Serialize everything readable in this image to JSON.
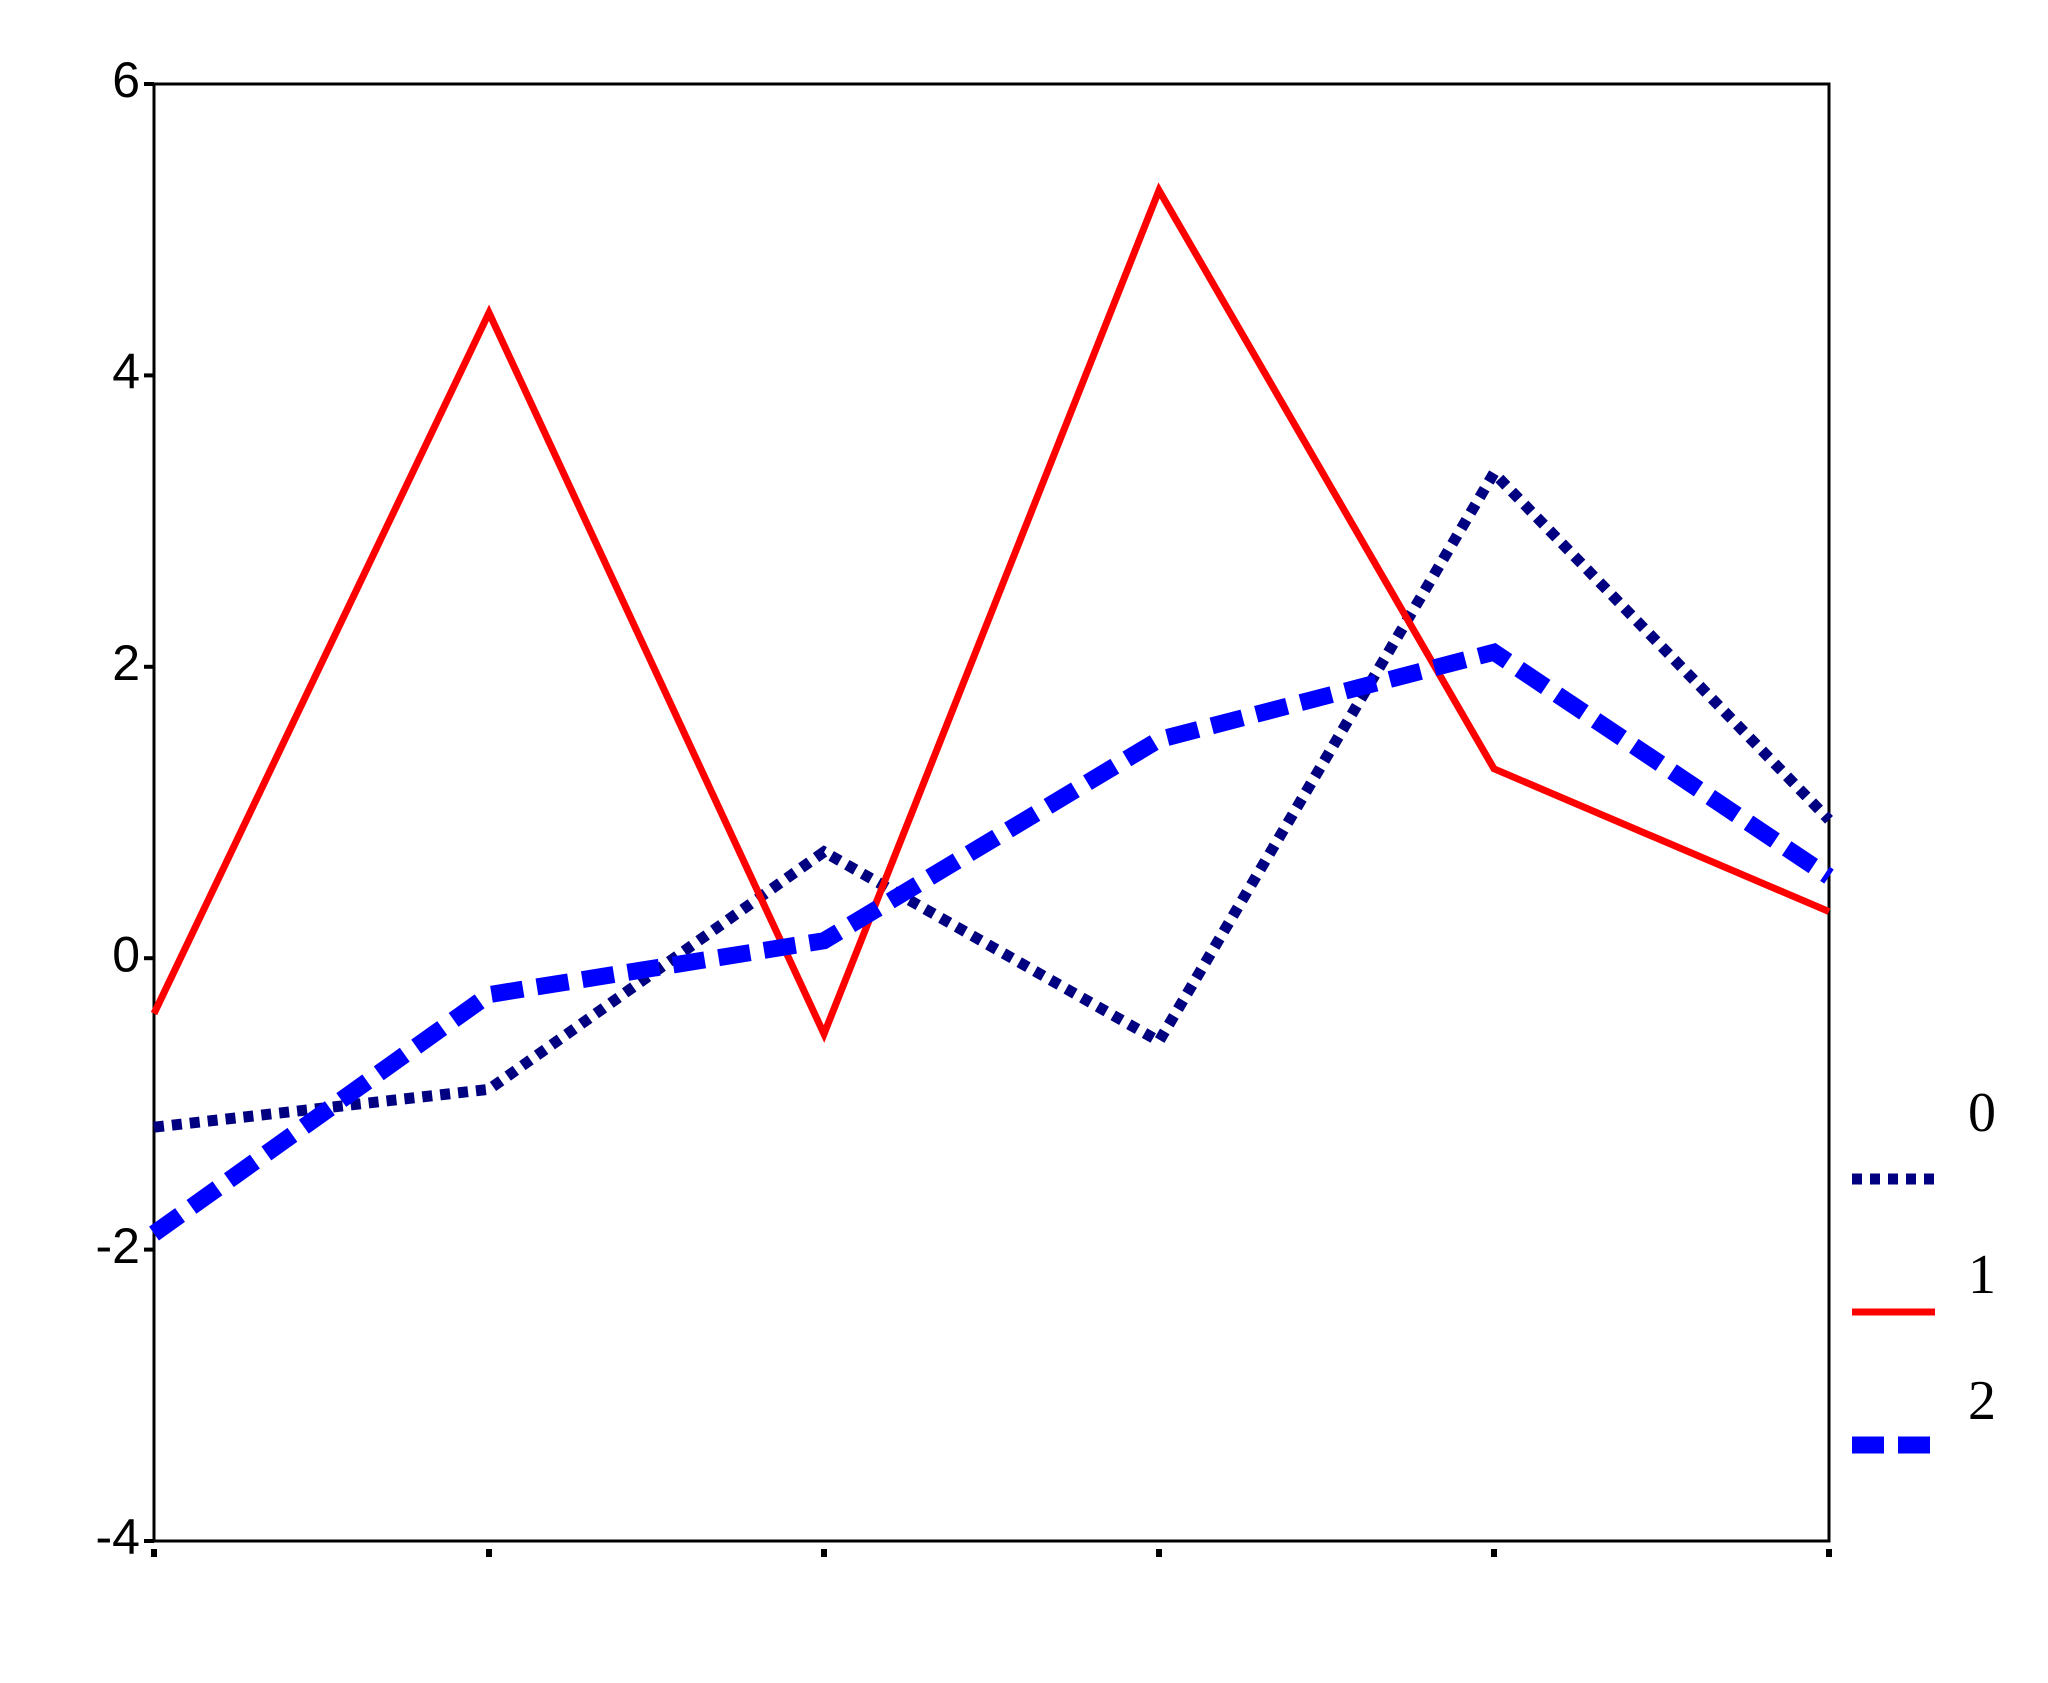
{
  "chart_data": {
    "type": "line",
    "categories": [
      null,
      null,
      null,
      null,
      null,
      null
    ],
    "series": [
      {
        "name": "0",
        "color": "#000080",
        "style": "dotted",
        "values": [
          -1.16,
          -0.9,
          0.73,
          -0.57,
          3.33,
          0.95
        ]
      },
      {
        "name": "1",
        "color": "#ff0000",
        "style": "solid",
        "values": [
          -0.38,
          4.43,
          -0.52,
          5.27,
          1.3,
          0.32
        ]
      },
      {
        "name": "2",
        "color": "#0000ff",
        "style": "dashed",
        "values": [
          -1.89,
          -0.25,
          0.12,
          1.5,
          2.1,
          0.56
        ]
      }
    ],
    "ylim": [
      -4,
      6
    ],
    "yticks": [
      -4,
      -2,
      0,
      2,
      4,
      6
    ],
    "grid": false,
    "legend": "right"
  }
}
